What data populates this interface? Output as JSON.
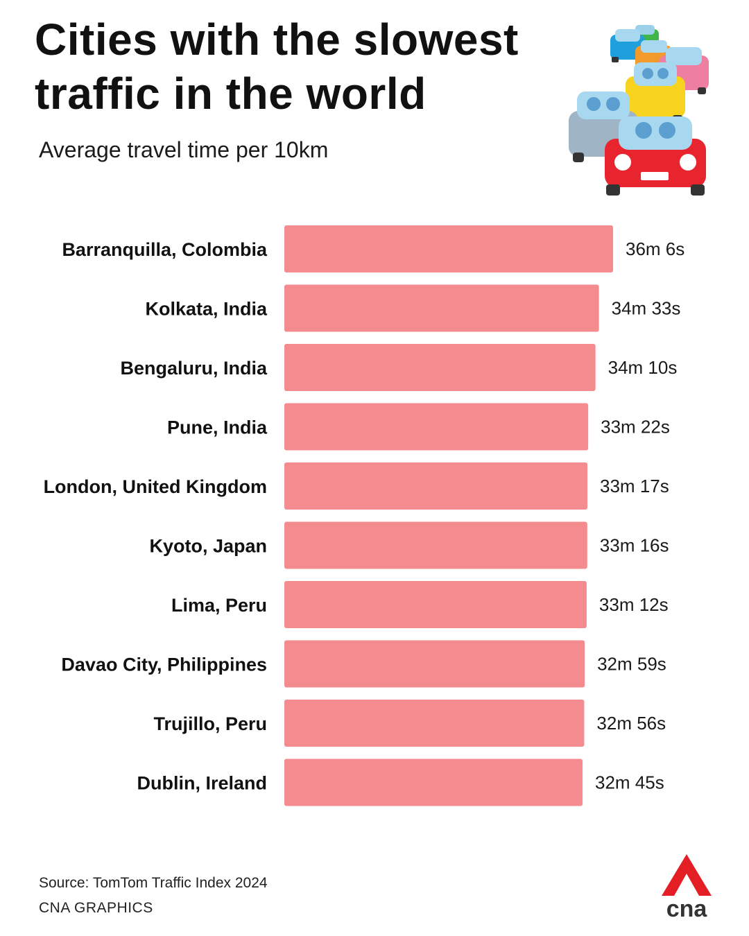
{
  "title_lines": [
    "Cities with the slowest",
    "traffic in the world"
  ],
  "subtitle": "Average travel time per 10km",
  "source": "Source: TomTom Traffic Index 2024",
  "credit": "CNA GRAPHICS",
  "logo_text": "cna",
  "colors": {
    "bar": "#f48c8f",
    "logo_red": "#e31e24",
    "logo_text": "#333333"
  },
  "icons": [
    "traffic-jam-cars-illustration",
    "cna-logo"
  ],
  "chart_data": {
    "type": "bar",
    "orientation": "horizontal",
    "title": "Cities with the slowest traffic in the world",
    "subtitle": "Average travel time per 10km",
    "xlabel": "",
    "ylabel": "",
    "grid": false,
    "categories": [
      "Barranquilla, Colombia",
      "Kolkata, India",
      "Bengaluru, India",
      "Pune, India",
      "London, United Kingdom",
      "Kyoto, Japan",
      "Lima, Peru",
      "Davao City, Philippines",
      "Trujillo, Peru",
      "Dublin, Ireland"
    ],
    "values": [
      2166,
      2073,
      2050,
      2002,
      1997,
      1996,
      1992,
      1979,
      1976,
      1965
    ],
    "value_unit": "seconds",
    "value_labels": [
      "36m 6s",
      "34m 33s",
      "34m 10s",
      "33m 22s",
      "33m 17s",
      "33m 16s",
      "33m 12s",
      "32m 59s",
      "32m 56s",
      "32m 45s"
    ]
  }
}
